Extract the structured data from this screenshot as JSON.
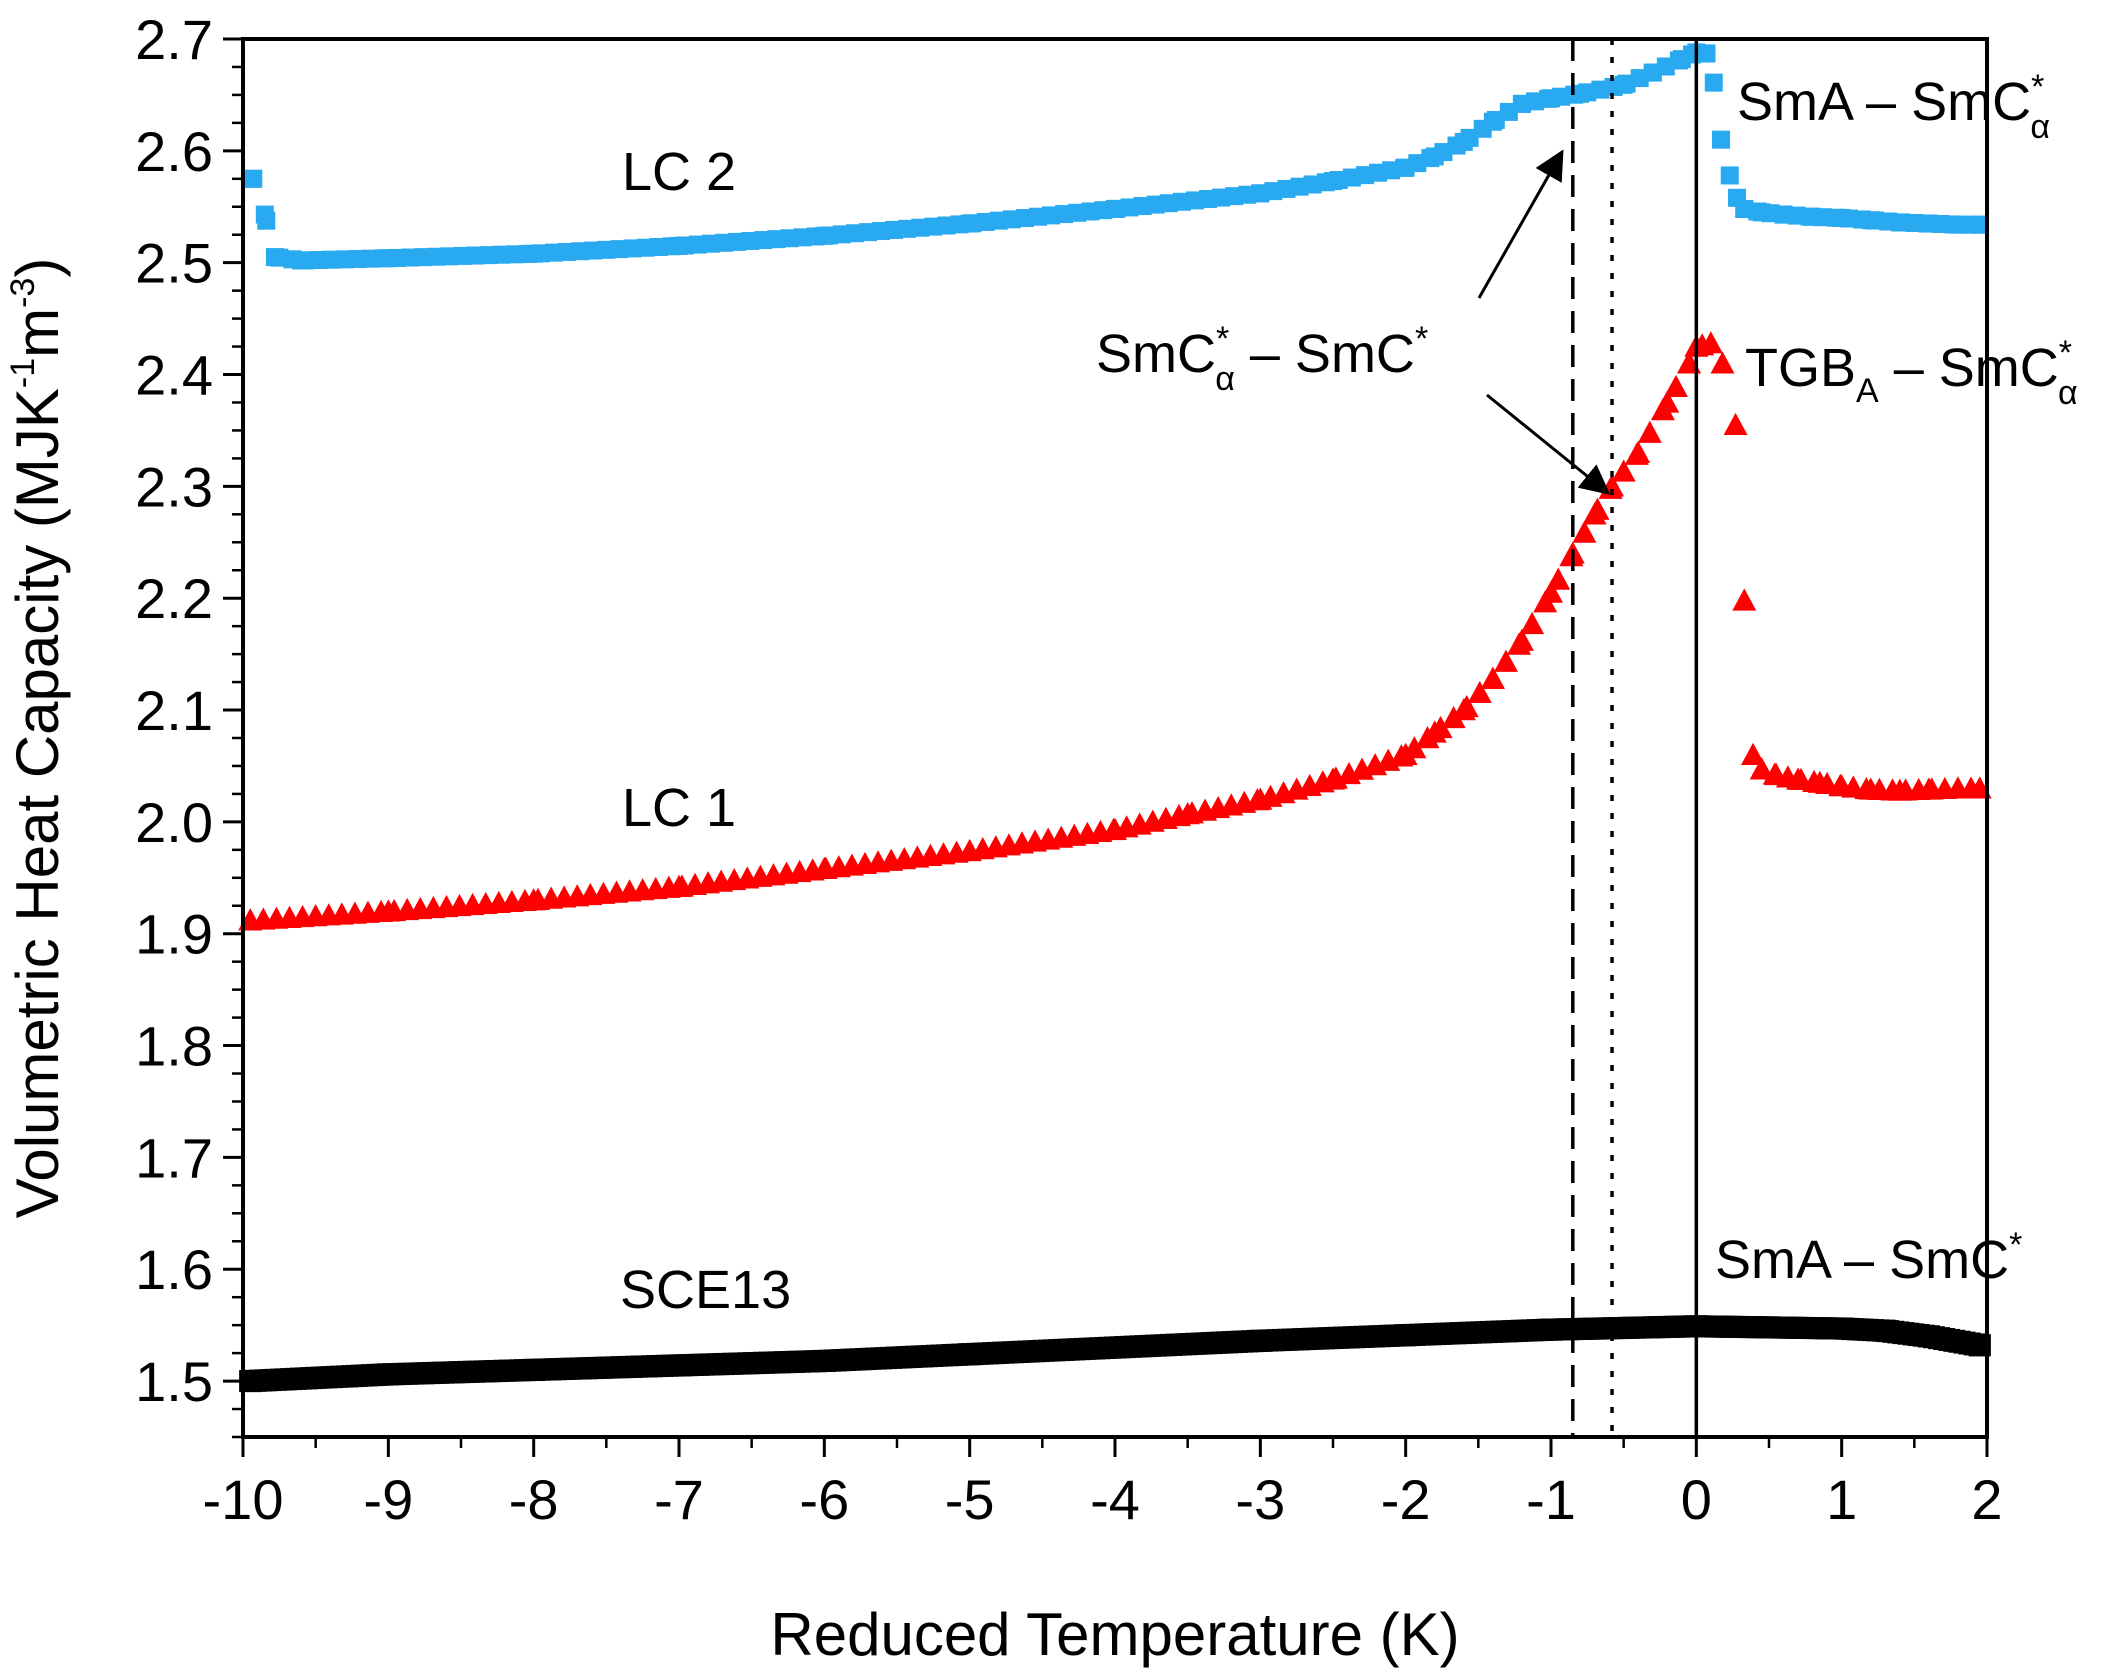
{
  "chart_data": {
    "type": "scatter",
    "title": "",
    "xlabel": "Reduced Temperature (K)",
    "ylabel": {
      "main": "Volumetric Heat Capacity (MJK",
      "exp1": "-1",
      "mid": "m",
      "exp2": "-3",
      "close": ")"
    },
    "xlim": [
      -10,
      2
    ],
    "ylim": [
      1.45,
      2.7
    ],
    "xticks": [
      -10,
      -9,
      -8,
      -7,
      -6,
      -5,
      -4,
      -3,
      -2,
      -1,
      0,
      1,
      2
    ],
    "xtick_labels": [
      "-10",
      "-9",
      "-8",
      "-7",
      "-6",
      "-5",
      "-4",
      "-3",
      "-2",
      "-1",
      "0",
      "1",
      "2"
    ],
    "yticks": [
      1.5,
      1.6,
      1.7,
      1.8,
      1.9,
      2.0,
      2.1,
      2.2,
      2.3,
      2.4,
      2.5,
      2.6,
      2.7
    ],
    "ytick_labels": [
      "1.5",
      "1.6",
      "1.7",
      "1.8",
      "1.9",
      "2.0",
      "2.1",
      "2.2",
      "2.3",
      "2.4",
      "2.5",
      "2.6",
      "2.7"
    ],
    "grid": false,
    "vertical_lines": [
      {
        "x": -0.85,
        "style": "dashed"
      },
      {
        "x": -0.58,
        "style": "dotted"
      },
      {
        "x": 0.0,
        "style": "solid"
      }
    ],
    "series": [
      {
        "name": "LC 2",
        "marker": "square",
        "color": "#29a9ef",
        "control_points": [
          [
            -9.93,
            2.575
          ],
          [
            -9.85,
            2.543
          ],
          [
            -9.78,
            2.505
          ],
          [
            -9.6,
            2.502
          ],
          [
            -9.0,
            2.504
          ],
          [
            -8.0,
            2.508
          ],
          [
            -7.0,
            2.515
          ],
          [
            -6.0,
            2.524
          ],
          [
            -5.0,
            2.535
          ],
          [
            -4.0,
            2.548
          ],
          [
            -3.0,
            2.562
          ],
          [
            -2.5,
            2.573
          ],
          [
            -2.0,
            2.585
          ],
          [
            -1.8,
            2.595
          ],
          [
            -1.6,
            2.608
          ],
          [
            -1.4,
            2.626
          ],
          [
            -1.2,
            2.642
          ],
          [
            -1.0,
            2.647
          ],
          [
            -0.8,
            2.651
          ],
          [
            -0.5,
            2.659
          ],
          [
            -0.3,
            2.67
          ],
          [
            -0.1,
            2.682
          ],
          [
            0.0,
            2.688
          ],
          [
            0.07,
            2.687
          ]
        ],
        "tail_points": [
          [
            0.12,
            2.661
          ],
          [
            0.17,
            2.61
          ],
          [
            0.23,
            2.578
          ],
          [
            0.28,
            2.558
          ],
          [
            0.33,
            2.548
          ],
          [
            0.45,
            2.545
          ],
          [
            0.6,
            2.543
          ],
          [
            0.8,
            2.541
          ],
          [
            1.0,
            2.54
          ],
          [
            1.2,
            2.538
          ],
          [
            1.4,
            2.536
          ],
          [
            1.6,
            2.535
          ],
          [
            1.8,
            2.534
          ],
          [
            1.95,
            2.534
          ]
        ]
      },
      {
        "name": "LC 1",
        "marker": "triangle",
        "color": "#ff0000",
        "control_points": [
          [
            -9.95,
            1.912
          ],
          [
            -9.0,
            1.92
          ],
          [
            -8.0,
            1.93
          ],
          [
            -7.0,
            1.942
          ],
          [
            -6.0,
            1.958
          ],
          [
            -5.0,
            1.974
          ],
          [
            -4.0,
            1.993
          ],
          [
            -3.5,
            2.007
          ],
          [
            -3.0,
            2.02
          ],
          [
            -2.5,
            2.038
          ],
          [
            -2.0,
            2.06
          ],
          [
            -1.8,
            2.08
          ],
          [
            -1.6,
            2.1
          ],
          [
            -1.4,
            2.128
          ],
          [
            -1.2,
            2.162
          ],
          [
            -1.0,
            2.205
          ],
          [
            -0.85,
            2.24
          ],
          [
            -0.7,
            2.275
          ],
          [
            -0.58,
            2.3
          ],
          [
            -0.4,
            2.33
          ],
          [
            -0.2,
            2.375
          ],
          [
            -0.05,
            2.41
          ],
          [
            0.0,
            2.425
          ],
          [
            0.1,
            2.428
          ]
        ],
        "tail_points": [
          [
            0.18,
            2.41
          ],
          [
            0.27,
            2.355
          ],
          [
            0.33,
            2.198
          ],
          [
            0.39,
            2.06
          ],
          [
            0.45,
            2.047
          ],
          [
            0.55,
            2.042
          ],
          [
            0.7,
            2.038
          ],
          [
            0.85,
            2.035
          ],
          [
            1.0,
            2.032
          ],
          [
            1.2,
            2.029
          ],
          [
            1.4,
            2.028
          ],
          [
            1.6,
            2.029
          ],
          [
            1.8,
            2.03
          ],
          [
            1.95,
            2.03
          ]
        ]
      },
      {
        "name": "SCE13",
        "marker": "square",
        "color": "#000000",
        "control_points": [
          [
            -9.95,
            1.5
          ],
          [
            -9.0,
            1.506
          ],
          [
            -8.0,
            1.51
          ],
          [
            -7.0,
            1.514
          ],
          [
            -6.0,
            1.518
          ],
          [
            -5.0,
            1.524
          ],
          [
            -4.0,
            1.53
          ],
          [
            -3.0,
            1.536
          ],
          [
            -2.0,
            1.541
          ],
          [
            -1.0,
            1.546
          ],
          [
            0.0,
            1.549
          ],
          [
            0.5,
            1.548
          ],
          [
            1.0,
            1.547
          ],
          [
            1.3,
            1.545
          ],
          [
            1.6,
            1.54
          ],
          [
            1.95,
            1.532
          ]
        ],
        "tail_points": []
      }
    ],
    "annotations": {
      "lc2": "LC 2",
      "lc1": "LC 1",
      "sce13": "SCE13",
      "sma_smca_a": "SmA – SmC",
      "sma_smca_a_sup": "*",
      "sma_smca_a_sub": "α",
      "tgba_a": "TGB",
      "tgba_a_sub1": "A",
      "tgba_b": " – SmC",
      "tgba_b_sup": "*",
      "tgba_b_sub": "α",
      "smca_smc_a": "SmC",
      "smca_smc_sup1": "*",
      "smca_smc_sub1": "α",
      "smca_smc_b": " – SmC",
      "smca_smc_sup2": "*",
      "sma_smc": "SmA – SmC",
      "sma_smc_sup": "*"
    }
  }
}
